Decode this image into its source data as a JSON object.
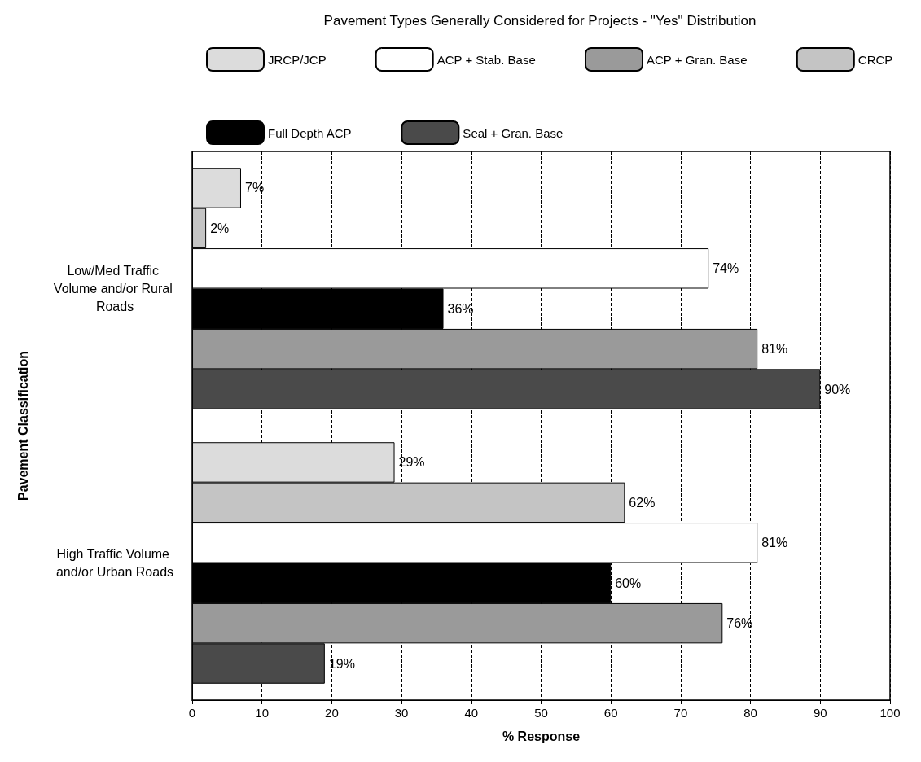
{
  "chart_data": {
    "type": "bar",
    "orientation": "horizontal",
    "title": "Pavement Types Generally Considered for Projects - \"Yes\" Distribution",
    "xlabel": "% Response",
    "ylabel": "Pavement Classification",
    "categories": [
      "Low/Med Traffic Volume and/or Rural Roads",
      "High Traffic Volume and/or Urban Roads"
    ],
    "series": [
      {
        "name": "JRCP/JCP",
        "color": "#dcdcdc",
        "values": [
          7,
          29
        ],
        "value_labels": [
          "7%",
          "29%"
        ]
      },
      {
        "name": "CRCP",
        "color": "#c4c4c4",
        "values": [
          2,
          62
        ],
        "value_labels": [
          "2%",
          "62%"
        ]
      },
      {
        "name": "ACP + Stab. Base",
        "color": "#ffffff",
        "values": [
          74,
          81
        ],
        "value_labels": [
          "74%",
          "81%"
        ]
      },
      {
        "name": "Full Depth ACP",
        "color": "#000000",
        "values": [
          36,
          60
        ],
        "value_labels": [
          "36%",
          "60%"
        ]
      },
      {
        "name": "ACP + Gran. Base",
        "color": "#9a9a9a",
        "values": [
          81,
          76
        ],
        "value_labels": [
          "81%",
          "76%"
        ]
      },
      {
        "name": "Seal + Gran. Base",
        "color": "#4a4a4a",
        "values": [
          90,
          19
        ],
        "value_labels": [
          "90%",
          "19%"
        ]
      }
    ],
    "xlim": [
      0,
      100
    ],
    "xticks": [
      0,
      10,
      20,
      30,
      40,
      50,
      60,
      70,
      80,
      90,
      100
    ],
    "grid": "x",
    "legend": "top"
  }
}
